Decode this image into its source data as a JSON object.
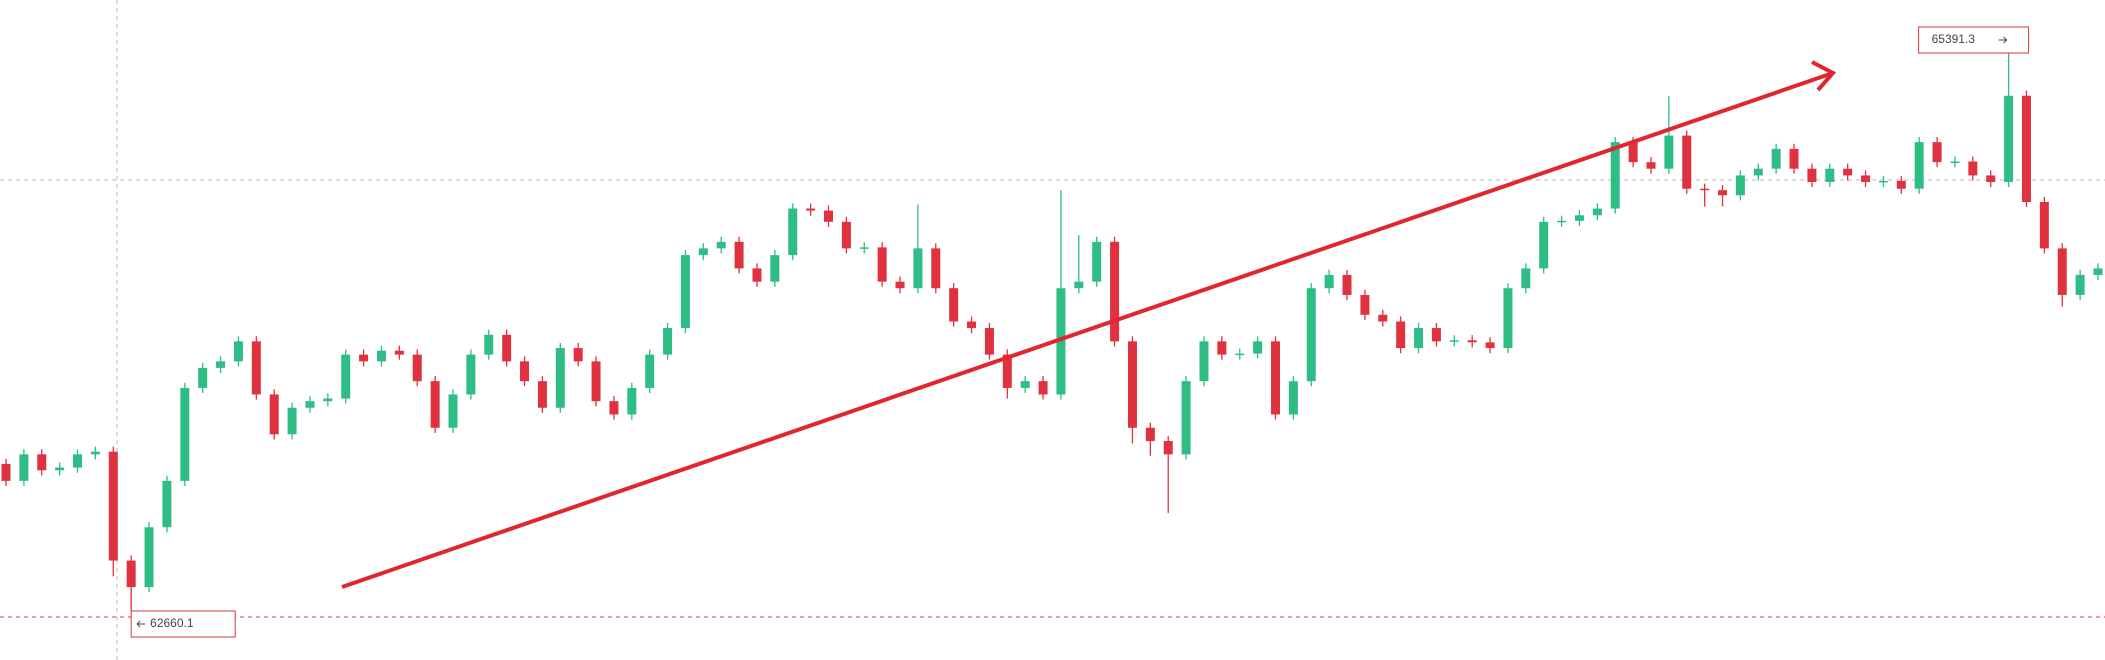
{
  "chart_data": {
    "type": "candlestick",
    "up_color": "#2ebd85",
    "down_color": "#e0313f",
    "open": [
      63380,
      63297,
      63427,
      63349,
      63362,
      63427,
      63440,
      62907,
      62777,
      63070,
      63297,
      63752,
      63850,
      63882,
      63980,
      63720,
      63525,
      63655,
      63687,
      63700,
      63915,
      63882,
      63934,
      63915,
      63785,
      63557,
      63720,
      63915,
      64012,
      63882,
      63785,
      63655,
      63947,
      63882,
      63687,
      63622,
      63752,
      63915,
      64045,
      64402,
      64435,
      64467,
      64337,
      64272,
      64402,
      64630,
      64620,
      64565,
      64435,
      64440,
      64272,
      64240,
      64435,
      64240,
      64077,
      64045,
      63915,
      63752,
      63785,
      63720,
      64240,
      64272,
      64467,
      63980,
      63557,
      63492,
      63427,
      63785,
      63980,
      63915,
      63920,
      63980,
      63622,
      63785,
      64240,
      64305,
      64207,
      64110,
      64077,
      63947,
      64045,
      63980,
      63985,
      63975,
      63947,
      64240,
      64337,
      64565,
      64570,
      64597,
      64630,
      64955,
      64857,
      64825,
      64987,
      64727,
      64720,
      64695,
      64792,
      64825,
      64922,
      64825,
      64760,
      64825,
      64792,
      64760,
      64765,
      64727,
      64955,
      64857,
      64860,
      64792,
      64760,
      65182,
      64662,
      64435,
      64207,
      64305
    ],
    "high": [
      63405,
      63452,
      63452,
      63387,
      63452,
      63465,
      63465,
      62932,
      63095,
      63322,
      63777,
      63875,
      63907,
      64005,
      64005,
      63745,
      63680,
      63712,
      63725,
      63940,
      63940,
      63959,
      63959,
      63940,
      63810,
      63745,
      63940,
      64037,
      64037,
      63907,
      63810,
      63972,
      63972,
      63907,
      63712,
      63777,
      63940,
      64070,
      64427,
      64460,
      64492,
      64492,
      64362,
      64427,
      64655,
      64655,
      64645,
      64590,
      64465,
      64465,
      64297,
      64650,
      64460,
      64265,
      64102,
      64070,
      63940,
      63810,
      63810,
      64720,
      64500,
      64492,
      64492,
      64005,
      63582,
      63517,
      63810,
      64005,
      64005,
      63945,
      64005,
      64005,
      63810,
      64265,
      64330,
      64330,
      64232,
      64135,
      64102,
      64070,
      64070,
      64010,
      64010,
      64000,
      64265,
      64362,
      64590,
      64595,
      64622,
      64655,
      64980,
      64980,
      64882,
      65180,
      65012,
      64752,
      64745,
      64817,
      64850,
      64947,
      64947,
      64850,
      64850,
      64850,
      64817,
      64790,
      64790,
      64980,
      64980,
      64885,
      64885,
      64817,
      65391.3,
      65207,
      64687,
      64460,
      64330,
      64362
    ],
    "low": [
      63272,
      63272,
      63324,
      63324,
      63337,
      63402,
      62830,
      62660.1,
      62752,
      63045,
      63272,
      63727,
      63825,
      63857,
      63695,
      63500,
      63500,
      63630,
      63662,
      63675,
      63857,
      63857,
      63890,
      63760,
      63532,
      63532,
      63695,
      63890,
      63857,
      63760,
      63630,
      63630,
      63857,
      63662,
      63597,
      63597,
      63727,
      63890,
      64020,
      64377,
      64410,
      64312,
      64247,
      64247,
      64377,
      64595,
      64540,
      64410,
      64410,
      64247,
      64215,
      64215,
      64215,
      64052,
      64020,
      63890,
      63700,
      63727,
      63695,
      63695,
      64215,
      64247,
      63955,
      63480,
      63420,
      63140,
      63402,
      63760,
      63890,
      63890,
      63895,
      63597,
      63597,
      63760,
      64215,
      64182,
      64085,
      64052,
      63922,
      63922,
      63955,
      63955,
      63950,
      63922,
      63922,
      64215,
      64312,
      64540,
      64545,
      64572,
      64605,
      64832,
      64800,
      64800,
      64702,
      64640,
      64640,
      64670,
      64767,
      64800,
      64800,
      64735,
      64735,
      64767,
      64735,
      64735,
      64702,
      64702,
      64832,
      64832,
      64767,
      64735,
      64735,
      64637,
      64410,
      64150,
      64182,
      64280
    ],
    "close": [
      63297,
      63427,
      63349,
      63362,
      63427,
      63440,
      62907,
      62777,
      63070,
      63297,
      63752,
      63850,
      63882,
      63980,
      63720,
      63525,
      63655,
      63687,
      63700,
      63915,
      63882,
      63934,
      63915,
      63785,
      63557,
      63720,
      63915,
      64012,
      63882,
      63785,
      63655,
      63947,
      63882,
      63687,
      63622,
      63752,
      63915,
      64045,
      64402,
      64435,
      64467,
      64337,
      64272,
      64402,
      64630,
      64620,
      64565,
      64435,
      64440,
      64272,
      64240,
      64435,
      64240,
      64077,
      64045,
      63915,
      63752,
      63785,
      63720,
      64240,
      64272,
      64467,
      63980,
      63557,
      63492,
      63427,
      63785,
      63980,
      63915,
      63920,
      63980,
      63622,
      63785,
      64240,
      64305,
      64207,
      64110,
      64077,
      63947,
      64045,
      63980,
      63985,
      63975,
      63947,
      64240,
      64337,
      64565,
      64570,
      64597,
      64630,
      64955,
      64857,
      64825,
      64987,
      64727,
      64720,
      64695,
      64792,
      64825,
      64922,
      64825,
      64760,
      64825,
      64792,
      64760,
      64765,
      64727,
      64955,
      64857,
      64860,
      64792,
      64760,
      65182,
      64662,
      64435,
      64207,
      64305,
      64337
    ]
  }
}
